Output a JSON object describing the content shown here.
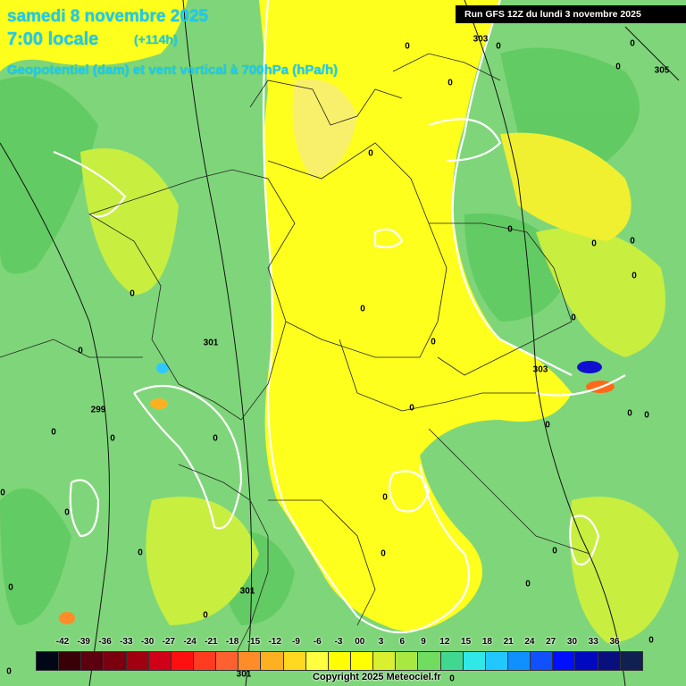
{
  "header": {
    "date": "samedi 8 novembre 2025",
    "time": "7:00 locale",
    "offset": "(+114h)",
    "subtitle": "Geopotentiel (dam) et vent vertical à 700hPa (hPa/h)",
    "run": "Run GFS 12Z du lundi 3 novembre 2025"
  },
  "map_labels": {
    "contours": [
      "303",
      "305",
      "301",
      "299",
      "303",
      "301",
      "301"
    ],
    "zeros": [
      "0",
      "0",
      "0",
      "0",
      "0",
      "0",
      "0",
      "0",
      "0",
      "0",
      "0",
      "0",
      "0",
      "0",
      "0",
      "0",
      "0",
      "0",
      "0",
      "0",
      "0",
      "0",
      "0",
      "0",
      "0",
      "0",
      "0",
      "0",
      "0",
      "0",
      "0",
      "0",
      "0",
      "0",
      "0",
      "0",
      "0",
      "0",
      "0"
    ]
  },
  "legend": {
    "values": [
      "-42",
      "-39",
      "-36",
      "-33",
      "-30",
      "-27",
      "-24",
      "-21",
      "-18",
      "-15",
      "-12",
      "-9",
      "-6",
      "-3",
      "00",
      "3",
      "6",
      "9",
      "12",
      "15",
      "18",
      "21",
      "24",
      "27",
      "30",
      "33",
      "36"
    ],
    "colors": [
      "#000818",
      "#3a0008",
      "#5c0010",
      "#7a0010",
      "#a00010",
      "#d00018",
      "#ff1010",
      "#ff3b20",
      "#ff6030",
      "#ff8c28",
      "#ffb020",
      "#ffd820",
      "#ffff40",
      "#ffff00",
      "#ffff00",
      "#d8f030",
      "#a8e840",
      "#70dc60",
      "#40d890",
      "#30e8e8",
      "#20c8ff",
      "#1090ff",
      "#1050ff",
      "#0010ff",
      "#0008c0",
      "#081080",
      "#102050"
    ]
  },
  "copyright": "Copyright 2025 Meteociel.fr",
  "colors": {
    "background": "#7fd67a",
    "yellow": "#ffff00",
    "contour": "#ffffff",
    "title": "#1fc8ff"
  }
}
